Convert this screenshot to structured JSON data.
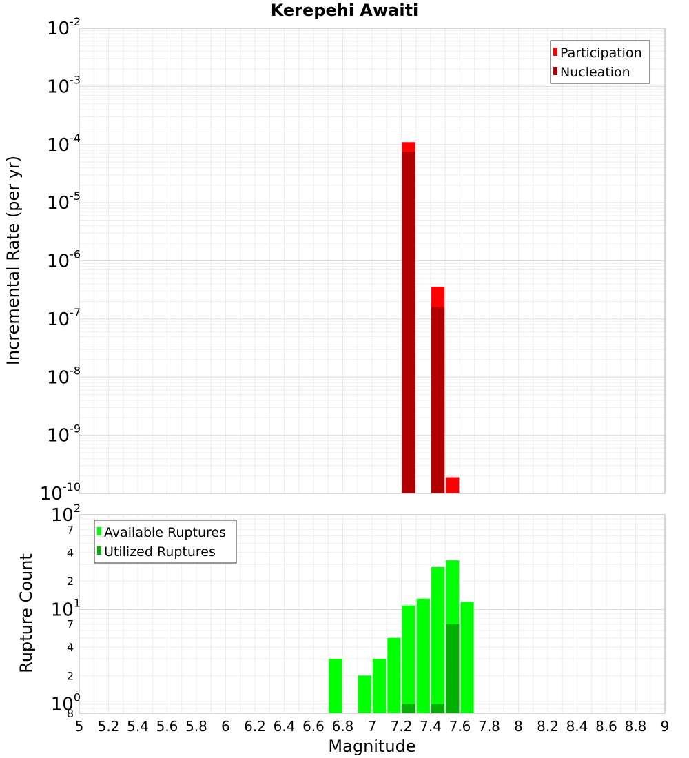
{
  "chart_data": [
    {
      "type": "bar",
      "title": "Kerepehi Awaiti",
      "xlabel": "Magnitude",
      "ylabel": "Incremental Rate (per yr)",
      "yscale": "log",
      "ylim": [
        1e-10,
        0.01
      ],
      "xlim": [
        5,
        9
      ],
      "grid": true,
      "legend_position": "top-right",
      "y_tick_labels": [
        {
          "base": "10",
          "exp": "-2",
          "value": 0.01
        },
        {
          "base": "10",
          "exp": "-3",
          "value": 0.001
        },
        {
          "base": "10",
          "exp": "-4",
          "value": 0.0001
        },
        {
          "base": "10",
          "exp": "-5",
          "value": 1e-05
        },
        {
          "base": "10",
          "exp": "-6",
          "value": 1e-06
        },
        {
          "base": "10",
          "exp": "-7",
          "value": 1e-07
        },
        {
          "base": "10",
          "exp": "-8",
          "value": 1e-08
        },
        {
          "base": "10",
          "exp": "-9",
          "value": 1e-09
        },
        {
          "base": "10",
          "exp": "-10",
          "value": 1e-10
        }
      ],
      "series": [
        {
          "name": "Participation",
          "color": "#ff0000",
          "points": [
            {
              "x": 7.25,
              "y": 0.00011
            },
            {
              "x": 7.45,
              "y": 3.6e-07
            },
            {
              "x": 7.55,
              "y": 1.9e-10
            }
          ]
        },
        {
          "name": "Nucleation",
          "color": "#b00000",
          "points": [
            {
              "x": 7.25,
              "y": 7.5e-05
            },
            {
              "x": 7.45,
              "y": 1.6e-07
            }
          ]
        }
      ]
    },
    {
      "type": "bar",
      "title": "",
      "xlabel": "Magnitude",
      "ylabel": "Rupture Count",
      "yscale": "log",
      "ylim": [
        0.8,
        100
      ],
      "xlim": [
        5,
        9
      ],
      "grid": true,
      "legend_position": "top-left",
      "y_tick_labels": [
        {
          "base": "10",
          "exp": "2",
          "value": 100
        },
        {
          "base": "10",
          "exp": "1",
          "value": 10
        },
        {
          "base": "10",
          "exp": "0",
          "value": 1
        }
      ],
      "y_minor_labels": [
        {
          "label": "7",
          "value": 70
        },
        {
          "label": "4",
          "value": 40
        },
        {
          "label": "2",
          "value": 20
        },
        {
          "label": "7",
          "value": 7
        },
        {
          "label": "4",
          "value": 4
        },
        {
          "label": "2",
          "value": 2
        },
        {
          "label": "8",
          "value": 0.8
        }
      ],
      "series": [
        {
          "name": "Available Ruptures",
          "color": "#00ff00",
          "points": [
            {
              "x": 6.75,
              "y": 3
            },
            {
              "x": 6.95,
              "y": 2
            },
            {
              "x": 7.05,
              "y": 3
            },
            {
              "x": 7.15,
              "y": 5
            },
            {
              "x": 7.25,
              "y": 11
            },
            {
              "x": 7.35,
              "y": 13
            },
            {
              "x": 7.45,
              "y": 28
            },
            {
              "x": 7.55,
              "y": 33
            },
            {
              "x": 7.65,
              "y": 12
            }
          ]
        },
        {
          "name": "Utilized Ruptures",
          "color": "#00b000",
          "points": [
            {
              "x": 7.25,
              "y": 1
            },
            {
              "x": 7.45,
              "y": 1
            },
            {
              "x": 7.55,
              "y": 7
            }
          ]
        }
      ]
    }
  ],
  "x_tick_labels": [
    "5",
    "5.2",
    "5.4",
    "5.6",
    "5.8",
    "6",
    "6.2",
    "6.4",
    "6.6",
    "6.8",
    "7",
    "7.2",
    "7.4",
    "7.6",
    "7.8",
    "8",
    "8.2",
    "8.4",
    "8.6",
    "8.8",
    "9"
  ],
  "x_tick_values": [
    5,
    5.2,
    5.4,
    5.6,
    5.8,
    6,
    6.2,
    6.4,
    6.6,
    6.8,
    7,
    7.2,
    7.4,
    7.6,
    7.8,
    8,
    8.2,
    8.4,
    8.6,
    8.8,
    9
  ]
}
